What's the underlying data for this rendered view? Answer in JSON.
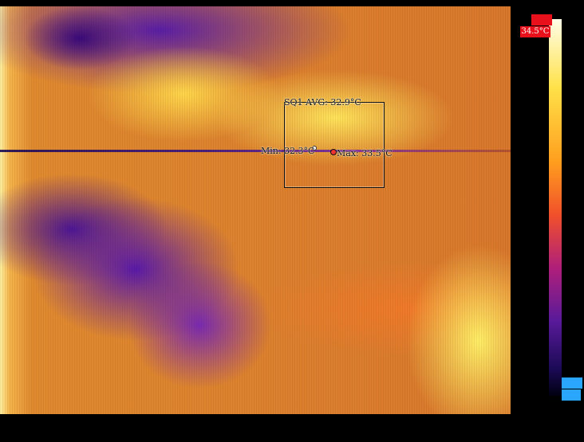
{
  "overlay": {
    "roi_title": "SQ1 AVG: 32.9°C",
    "min_label": "Min: 32.3°C",
    "max_label": "Max: 33.5°C"
  },
  "color_scale": {
    "top_value": "34.5°C",
    "palette": [
      "#fffde8",
      "#ffe24a",
      "#ff9e1e",
      "#f0502a",
      "#b01f7a",
      "#5a1a9a",
      "#1a0a55",
      "#000010"
    ],
    "top_flag_color": "#e8101a",
    "bottom_flag_color": "#2aa6ff"
  }
}
